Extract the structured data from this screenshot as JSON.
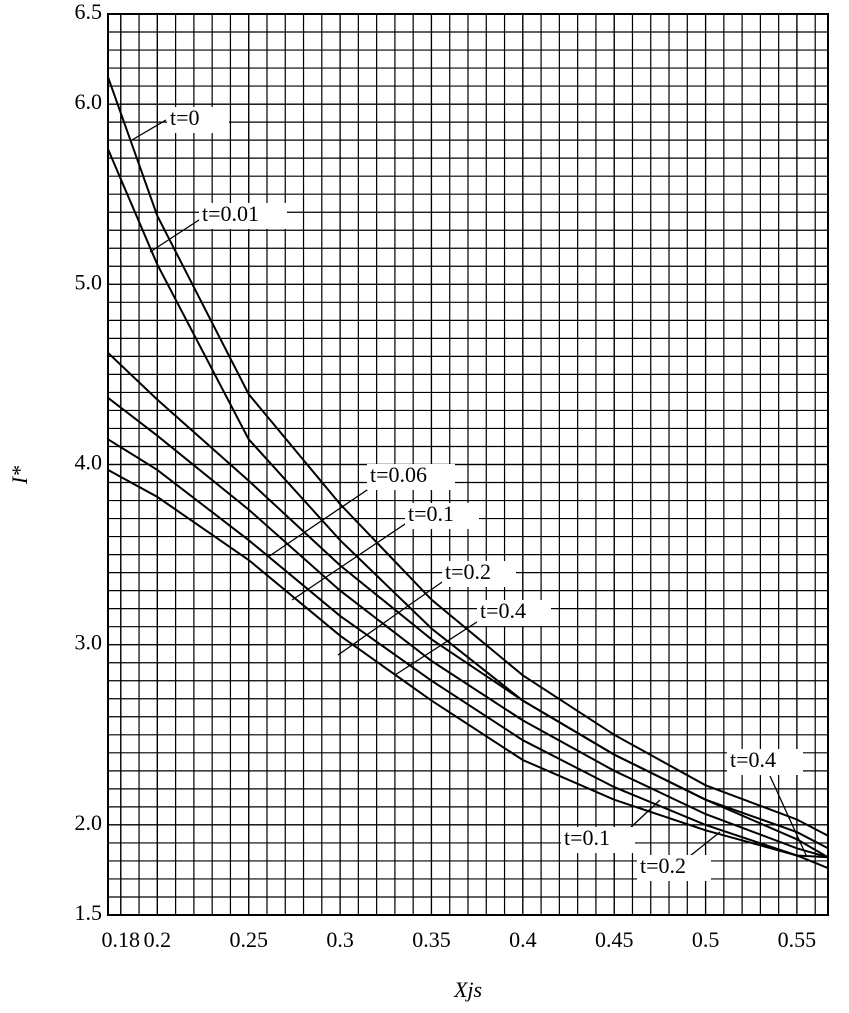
{
  "chart_data": {
    "type": "line",
    "x_label": "Xjs",
    "y_label": "I*",
    "x": [
      0.173,
      0.2,
      0.25,
      0.3,
      0.35,
      0.4,
      0.45,
      0.5,
      0.55,
      0.567
    ],
    "series": [
      {
        "name": "t=0",
        "color": "#000000",
        "values": [
          6.15,
          5.38,
          4.39,
          3.78,
          3.25,
          2.83,
          2.5,
          2.22,
          2.03,
          1.94
        ]
      },
      {
        "name": "t=0.01",
        "color": "#000000",
        "values": [
          5.75,
          5.11,
          4.14,
          3.58,
          3.09,
          2.69,
          2.39,
          2.14,
          1.96,
          1.87
        ]
      },
      {
        "name": "t=0.06",
        "color": "#000000",
        "values": [
          4.62,
          4.36,
          3.91,
          3.44,
          3.03,
          2.69,
          2.39,
          2.14,
          1.92,
          1.82
        ]
      },
      {
        "name": "t=0.1",
        "color": "#000000",
        "values": [
          4.37,
          4.16,
          3.75,
          3.3,
          2.91,
          2.58,
          2.3,
          2.06,
          1.87,
          1.82
        ]
      },
      {
        "name": "t=0.2",
        "color": "#000000",
        "values": [
          4.14,
          3.97,
          3.58,
          3.16,
          2.8,
          2.47,
          2.21,
          2.0,
          1.83,
          1.76
        ]
      },
      {
        "name": "t=0.4",
        "color": "#000000",
        "values": [
          3.97,
          3.82,
          3.47,
          3.05,
          2.69,
          2.36,
          2.14,
          1.97,
          1.83,
          1.82
        ]
      }
    ],
    "annotations": [
      "t=0.4",
      "t=0.1",
      "t=0.2"
    ],
    "xlim": [
      0.173,
      0.567
    ],
    "ylim": [
      1.5,
      6.5
    ],
    "xticks": [
      0.18,
      0.2,
      0.25,
      0.3,
      0.35,
      0.4,
      0.45,
      0.5,
      0.55
    ],
    "yticks": [
      1.5,
      {
        "value": 2,
        "label": "2.0"
      },
      {
        "value": 3,
        "label": "3.0"
      },
      {
        "value": 4,
        "label": "4.0"
      },
      {
        "value": 5,
        "label": "5.0"
      },
      {
        "value": 6,
        "label": "6.0"
      },
      6.5
    ],
    "grid": true,
    "minor_grid": {
      "x": 0.01,
      "y": 0.1
    }
  }
}
